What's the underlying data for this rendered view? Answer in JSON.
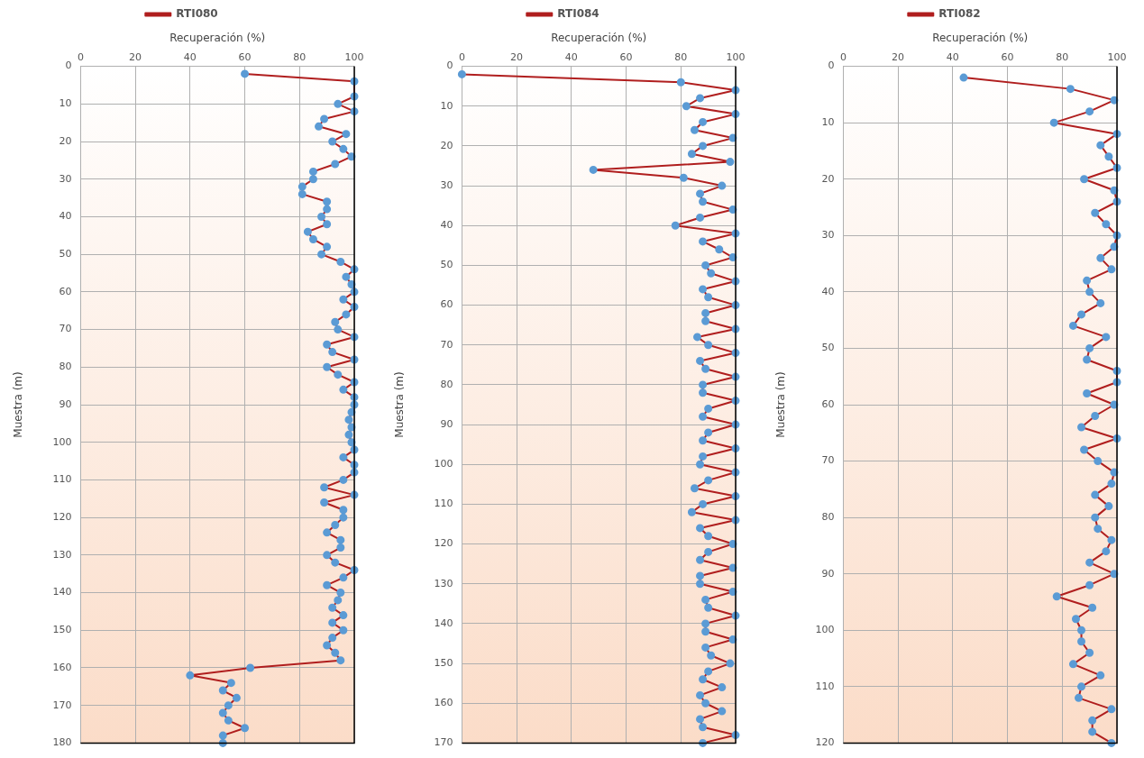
{
  "chart_data": [
    {
      "type": "line",
      "xlabel": "Recuperación (%)",
      "ylabel": "Muestra (m)",
      "xlim": [
        0,
        100
      ],
      "xticks": [
        0,
        20,
        40,
        60,
        80,
        100
      ],
      "ylim": [
        180,
        0
      ],
      "yticks": [
        0,
        10,
        20,
        30,
        40,
        50,
        60,
        70,
        80,
        90,
        100,
        110,
        120,
        130,
        140,
        150,
        160,
        170,
        180
      ],
      "grid": true,
      "legend": "top",
      "marker": "circle",
      "series": [
        {
          "name": "RTI080",
          "color": "#b01e1e",
          "x": [
            60,
            100,
            100,
            94,
            100,
            89,
            87,
            97,
            92,
            96,
            99,
            93,
            85,
            85,
            81,
            81,
            90,
            90,
            88,
            90,
            83,
            85,
            90,
            88,
            95,
            100,
            97,
            99,
            100,
            96,
            100,
            97,
            93,
            94,
            100,
            90,
            92,
            100,
            90,
            94,
            100,
            96,
            100,
            100,
            99,
            98,
            99,
            98,
            99,
            100,
            96,
            100,
            100,
            96,
            89,
            100,
            89,
            96,
            96,
            93,
            90,
            95,
            95,
            90,
            93,
            100,
            96,
            90,
            95,
            94,
            92,
            96,
            92,
            96,
            92,
            90,
            93,
            95,
            62,
            40,
            55,
            52,
            57,
            54,
            52,
            54,
            60,
            52,
            52
          ],
          "values": [
            2,
            4,
            8,
            10,
            12,
            14,
            16,
            18,
            20,
            22,
            24,
            26,
            28,
            30,
            32,
            34,
            36,
            38,
            40,
            42,
            44,
            46,
            48,
            50,
            52,
            54,
            56,
            58,
            60,
            62,
            64,
            66,
            68,
            70,
            72,
            74,
            76,
            78,
            80,
            82,
            84,
            86,
            88,
            90,
            92,
            94,
            96,
            98,
            100,
            102,
            104,
            106,
            108,
            110,
            112,
            114,
            116,
            118,
            120,
            122,
            124,
            126,
            128,
            130,
            132,
            134,
            136,
            138,
            140,
            142,
            144,
            146,
            148,
            150,
            152,
            154,
            156,
            158,
            160,
            162,
            164,
            166,
            168,
            170,
            172,
            174,
            176,
            178,
            180
          ]
        }
      ]
    },
    {
      "type": "line",
      "xlabel": "Recuperación (%)",
      "ylabel": "Muestra (m)",
      "xlim": [
        0,
        100
      ],
      "xticks": [
        0,
        20,
        40,
        60,
        80,
        100
      ],
      "ylim": [
        170,
        0
      ],
      "yticks": [
        0,
        10,
        20,
        30,
        40,
        50,
        60,
        70,
        80,
        90,
        100,
        110,
        120,
        130,
        140,
        150,
        160,
        170
      ],
      "grid": true,
      "legend": "top",
      "marker": "circle",
      "series": [
        {
          "name": "RTI084",
          "color": "#b01e1e",
          "x": [
            0,
            80,
            100,
            87,
            82,
            100,
            88,
            85,
            99,
            88,
            84,
            98,
            48,
            81,
            95,
            87,
            88,
            99,
            87,
            78,
            100,
            88,
            94,
            99,
            89,
            91,
            100,
            88,
            90,
            100,
            89,
            89,
            100,
            86,
            90,
            100,
            87,
            89,
            100,
            88,
            88,
            100,
            90,
            88,
            100,
            90,
            88,
            100,
            88,
            87,
            100,
            90,
            85,
            100,
            88,
            84,
            100,
            87,
            90,
            99,
            90,
            87,
            99,
            87,
            87,
            99,
            89,
            90,
            100,
            89,
            89,
            99,
            89,
            91,
            98,
            90,
            88,
            95,
            87,
            89,
            95,
            87,
            88,
            100,
            88
          ],
          "values": [
            2,
            4,
            6,
            8,
            10,
            12,
            14,
            16,
            18,
            20,
            22,
            24,
            26,
            28,
            30,
            32,
            34,
            36,
            38,
            40,
            42,
            44,
            46,
            48,
            50,
            52,
            54,
            56,
            58,
            60,
            62,
            64,
            66,
            68,
            70,
            72,
            74,
            76,
            78,
            80,
            82,
            84,
            86,
            88,
            90,
            92,
            94,
            96,
            98,
            100,
            102,
            104,
            106,
            108,
            110,
            112,
            114,
            116,
            118,
            120,
            122,
            124,
            126,
            128,
            130,
            132,
            134,
            136,
            138,
            140,
            142,
            144,
            146,
            148,
            150,
            152,
            154,
            156,
            158,
            160,
            162,
            164,
            166,
            168,
            170
          ]
        }
      ]
    },
    {
      "type": "line",
      "xlabel": "Recuperación (%)",
      "ylabel": "Muestra (m)",
      "xlim": [
        0,
        100
      ],
      "xticks": [
        0,
        20,
        40,
        60,
        80,
        100
      ],
      "ylim": [
        120,
        0
      ],
      "yticks": [
        0,
        10,
        20,
        30,
        40,
        50,
        60,
        70,
        80,
        90,
        100,
        110,
        120
      ],
      "grid": true,
      "legend": "top",
      "marker": "circle",
      "series": [
        {
          "name": "RTI082",
          "color": "#b01e1e",
          "x": [
            44,
            83,
            99,
            90,
            77,
            100,
            94,
            97,
            100,
            88,
            99,
            100,
            92,
            96,
            100,
            99,
            94,
            98,
            89,
            90,
            94,
            87,
            84,
            96,
            90,
            89,
            100,
            100,
            89,
            99,
            92,
            87,
            100,
            88,
            93,
            99,
            98,
            92,
            97,
            92,
            93,
            98,
            96,
            90,
            99,
            90,
            78,
            91,
            85,
            87,
            87,
            90,
            84,
            94,
            87,
            86,
            98,
            91,
            91,
            98
          ],
          "values": [
            2,
            4,
            6,
            8,
            10,
            12,
            14,
            16,
            18,
            20,
            22,
            24,
            26,
            28,
            30,
            32,
            34,
            36,
            38,
            40,
            42,
            44,
            46,
            48,
            50,
            52,
            54,
            56,
            58,
            60,
            62,
            64,
            66,
            68,
            70,
            72,
            74,
            76,
            78,
            80,
            82,
            84,
            86,
            88,
            90,
            92,
            94,
            96,
            98,
            100,
            102,
            104,
            106,
            108,
            110,
            112,
            114,
            116,
            118,
            120
          ]
        }
      ]
    }
  ]
}
